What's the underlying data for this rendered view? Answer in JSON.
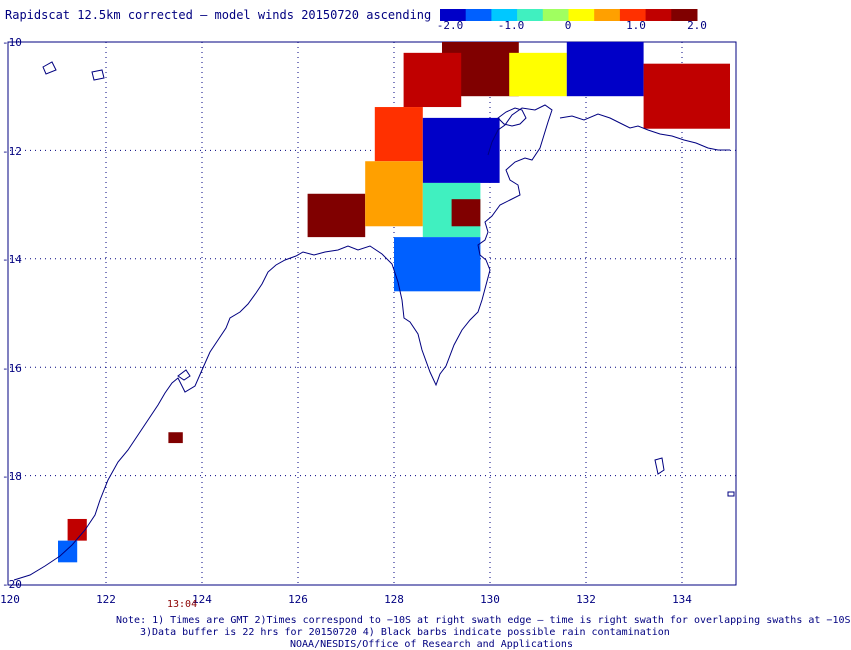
{
  "title": "Rapidscat 12.5km corrected — model winds 20150720 ascending",
  "colorbar": {
    "labels": [
      "-2.0",
      "-1.0",
      "0",
      "1.0",
      "2.0"
    ],
    "min": -2.0,
    "max": 2.0,
    "colors": [
      "#0000c8",
      "#0060ff",
      "#00c8ff",
      "#40f0c0",
      "#a0ff60",
      "#ffff00",
      "#ffa000",
      "#ff3000",
      "#c00000",
      "#800000"
    ]
  },
  "map": {
    "lon_range": [
      120,
      135
    ],
    "lat_range": [
      -20,
      -10
    ],
    "lon_labels": [
      "120",
      "122",
      "124",
      "126",
      "128",
      "130",
      "132",
      "134"
    ],
    "lat_labels": [
      "-10",
      "-12",
      "-14",
      "-16",
      "-18",
      "-20"
    ],
    "grid": "dotted",
    "coastline_color": "#000080"
  },
  "time_label": "13:04",
  "notes": [
    "Note: 1) Times are GMT 2)Times correspond to −10S at right swath edge — time is right swath for overlapping swaths at −10S",
    "3)Data buffer is 22 hrs for 20150720 4) Black barbs indicate possible rain contamination",
    "NOAA/NESDIS/Office of Research and Applications"
  ],
  "chart_data": {
    "type": "heatmap",
    "title": "Rapidscat 12.5km corrected — model winds 20150720 ascending",
    "xlabel": "",
    "ylabel": "",
    "xlim": [
      120,
      135
    ],
    "ylim": [
      -20,
      -10
    ],
    "value_range": [
      -2.0,
      2.0
    ],
    "grid": true,
    "regions": [
      {
        "lon": [
          129.0,
          130.6
        ],
        "lat": [
          -11.0,
          -10.0
        ],
        "value": 2.0
      },
      {
        "lon": [
          128.2,
          129.4
        ],
        "lat": [
          -11.2,
          -10.2
        ],
        "value": 1.3
      },
      {
        "lon": [
          127.6,
          128.6
        ],
        "lat": [
          -12.2,
          -11.2
        ],
        "value": 0.9
      },
      {
        "lon": [
          128.6,
          130.2
        ],
        "lat": [
          -12.6,
          -11.4
        ],
        "value": -1.6
      },
      {
        "lon": [
          130.4,
          131.6
        ],
        "lat": [
          -11.0,
          -10.2
        ],
        "value": 0.2
      },
      {
        "lon": [
          131.6,
          133.2
        ],
        "lat": [
          -11.0,
          -10.0
        ],
        "value": -1.8
      },
      {
        "lon": [
          133.2,
          135.0
        ],
        "lat": [
          -11.6,
          -10.4
        ],
        "value": 1.5
      },
      {
        "lon": [
          126.2,
          127.4
        ],
        "lat": [
          -13.6,
          -12.8
        ],
        "value": 1.8
      },
      {
        "lon": [
          127.4,
          128.6
        ],
        "lat": [
          -13.4,
          -12.2
        ],
        "value": 0.5
      },
      {
        "lon": [
          128.6,
          129.8
        ],
        "lat": [
          -13.6,
          -12.6
        ],
        "value": -0.7
      },
      {
        "lon": [
          129.2,
          129.8
        ],
        "lat": [
          -13.4,
          -12.9
        ],
        "value": 1.6
      },
      {
        "lon": [
          128.0,
          129.8
        ],
        "lat": [
          -14.6,
          -13.6
        ],
        "value": -1.3
      },
      {
        "lon": [
          121.2,
          121.6
        ],
        "lat": [
          -19.2,
          -18.8
        ],
        "value": 1.2
      },
      {
        "lon": [
          121.0,
          121.4
        ],
        "lat": [
          -19.6,
          -19.2
        ],
        "value": -1.3
      },
      {
        "lon": [
          123.3,
          123.6
        ],
        "lat": [
          -17.4,
          -17.2
        ],
        "value": 2.0
      }
    ]
  }
}
